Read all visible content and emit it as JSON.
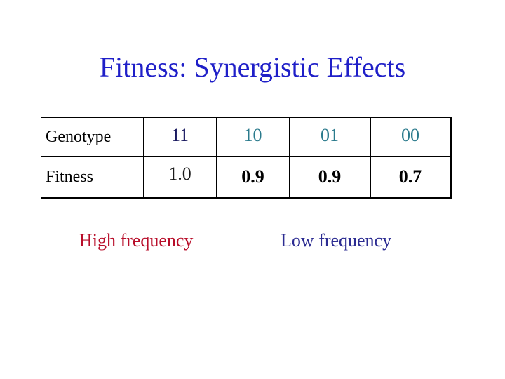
{
  "slide": {
    "title": "Fitness: Synergistic Effects"
  },
  "table": {
    "genotype_label": "Genotype",
    "fitness_label": "Fitness",
    "genotypes": [
      "11",
      "10",
      "01",
      "00"
    ],
    "fitness_values": [
      "1.0",
      "0.9",
      "0.9",
      "0.7"
    ]
  },
  "notes": {
    "high": "High frequency",
    "low": "Low frequency"
  },
  "colors": {
    "title": "#1f1fc8",
    "high_frequency": "#b80e2a",
    "low_frequency": "#2c2c92",
    "genotype_values": "#2a7a8c"
  }
}
